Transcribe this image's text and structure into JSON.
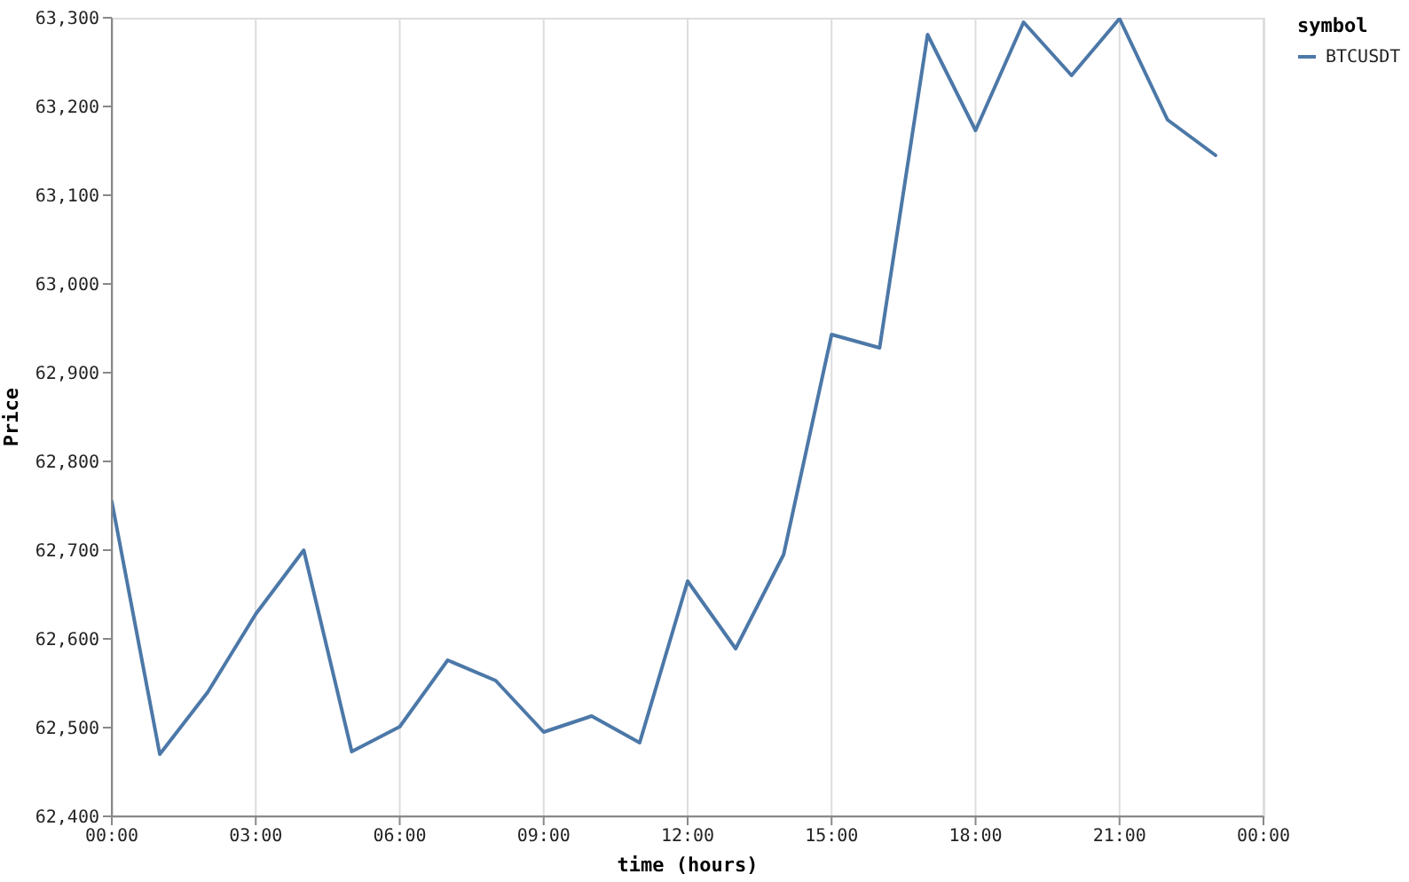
{
  "chart_data": {
    "type": "line",
    "xlabel": "time (hours)",
    "ylabel": "Price",
    "legend_title": "symbol",
    "x": [
      0,
      1,
      2,
      3,
      4,
      5,
      6,
      7,
      8,
      9,
      10,
      11,
      12,
      13,
      14,
      15,
      16,
      17,
      18,
      19,
      20,
      21,
      22,
      23
    ],
    "series": [
      {
        "name": "BTCUSDT",
        "color": "#4c78a8",
        "values": [
          62755,
          62470,
          62540,
          62628,
          62700,
          62473,
          62501,
          62576,
          62553,
          62495,
          62513,
          62483,
          62665,
          62589,
          62695,
          62943,
          62928,
          63281,
          63173,
          63295,
          63235,
          63299,
          63185,
          63145
        ]
      }
    ],
    "xlim": [
      0,
      24
    ],
    "xticks": [
      {
        "value": 0,
        "label": "00:00"
      },
      {
        "value": 3,
        "label": "03:00"
      },
      {
        "value": 6,
        "label": "06:00"
      },
      {
        "value": 9,
        "label": "09:00"
      },
      {
        "value": 12,
        "label": "12:00"
      },
      {
        "value": 15,
        "label": "15:00"
      },
      {
        "value": 18,
        "label": "18:00"
      },
      {
        "value": 21,
        "label": "21:00"
      },
      {
        "value": 24,
        "label": "00:00"
      }
    ],
    "ylim": [
      62400,
      63300
    ],
    "yticks": [
      {
        "value": 62400,
        "label": "62,400"
      },
      {
        "value": 62500,
        "label": "62,500"
      },
      {
        "value": 62600,
        "label": "62,600"
      },
      {
        "value": 62700,
        "label": "62,700"
      },
      {
        "value": 62800,
        "label": "62,800"
      },
      {
        "value": 62900,
        "label": "62,900"
      },
      {
        "value": 63000,
        "label": "63,000"
      },
      {
        "value": 63100,
        "label": "63,100"
      },
      {
        "value": 63200,
        "label": "63,200"
      },
      {
        "value": 63300,
        "label": "63,300"
      }
    ],
    "grid": "x",
    "legend": "top right",
    "line_style": "solid"
  }
}
